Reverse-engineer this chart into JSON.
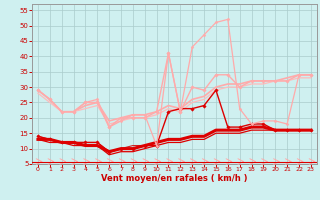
{
  "bg_color": "#cff0f0",
  "grid_color": "#aacccc",
  "xlabel": "Vent moyen/en rafales ( km/h )",
  "xlabel_color": "#cc0000",
  "xlabel_fontsize": 6,
  "xtick_color": "#cc0000",
  "ytick_color": "#cc0000",
  "xlim": [
    -0.5,
    23.5
  ],
  "ylim": [
    5,
    57
  ],
  "yticks": [
    5,
    10,
    15,
    20,
    25,
    30,
    35,
    40,
    45,
    50,
    55
  ],
  "xticks": [
    0,
    1,
    2,
    3,
    4,
    5,
    6,
    7,
    8,
    9,
    10,
    11,
    12,
    13,
    14,
    15,
    16,
    17,
    18,
    19,
    20,
    21,
    22,
    23
  ],
  "lines": [
    {
      "x": [
        0,
        1,
        2,
        3,
        4,
        5,
        6,
        7,
        8,
        9,
        10,
        11,
        12,
        13,
        14,
        15,
        16,
        17,
        18,
        19,
        20,
        21,
        22,
        23
      ],
      "y": [
        14,
        13,
        12,
        12,
        12,
        12,
        9,
        10,
        10,
        11,
        11,
        22,
        23,
        23,
        24,
        29,
        17,
        17,
        18,
        18,
        16,
        16,
        16,
        16
      ],
      "color": "#dd0000",
      "lw": 1.0,
      "marker": "D",
      "ms": 1.8,
      "zorder": 5
    },
    {
      "x": [
        0,
        1,
        2,
        3,
        4,
        5,
        6,
        7,
        8,
        9,
        10,
        11,
        12,
        13,
        14,
        15,
        16,
        17,
        18,
        19,
        20,
        21,
        22,
        23
      ],
      "y": [
        13,
        13,
        12,
        12,
        11,
        11,
        9,
        10,
        10,
        11,
        12,
        13,
        13,
        14,
        14,
        16,
        16,
        16,
        17,
        17,
        16,
        16,
        16,
        16
      ],
      "color": "#dd0000",
      "lw": 2.2,
      "marker": null,
      "ms": 0,
      "zorder": 4
    },
    {
      "x": [
        0,
        1,
        2,
        3,
        4,
        5,
        6,
        7,
        8,
        9,
        10,
        11,
        12,
        13,
        14,
        15,
        16,
        17,
        18,
        19,
        20,
        21,
        22,
        23
      ],
      "y": [
        13,
        12,
        12,
        11,
        11,
        11,
        8,
        9,
        9,
        10,
        11,
        12,
        12,
        13,
        13,
        15,
        15,
        15,
        16,
        16,
        16,
        16,
        16,
        16
      ],
      "color": "#dd0000",
      "lw": 0.9,
      "marker": null,
      "ms": 0,
      "zorder": 3
    },
    {
      "x": [
        0,
        1,
        2,
        3,
        4,
        5,
        6,
        7,
        8,
        9,
        10,
        11,
        12,
        13,
        14,
        15,
        16,
        17,
        18,
        19,
        20,
        21,
        22,
        23
      ],
      "y": [
        14,
        13,
        12,
        12,
        12,
        12,
        9,
        10,
        11,
        11,
        12,
        13,
        13,
        14,
        14,
        16,
        16,
        16,
        17,
        17,
        16,
        16,
        16,
        16
      ],
      "color": "#cc2222",
      "lw": 0.8,
      "marker": null,
      "ms": 0,
      "zorder": 3
    },
    {
      "x": [
        0,
        1,
        2,
        3,
        4,
        5,
        6,
        7,
        8,
        9,
        10,
        11,
        12,
        13,
        14,
        15,
        16,
        17,
        18,
        19,
        20,
        21,
        22,
        23
      ],
      "y": [
        29,
        26,
        22,
        22,
        25,
        25,
        17,
        20,
        20,
        20,
        22,
        41,
        22,
        30,
        29,
        34,
        34,
        30,
        32,
        32,
        32,
        32,
        34,
        34
      ],
      "color": "#ffaaaa",
      "lw": 1.0,
      "marker": "D",
      "ms": 1.8,
      "zorder": 5
    },
    {
      "x": [
        0,
        1,
        2,
        3,
        4,
        5,
        6,
        7,
        8,
        9,
        10,
        11,
        12,
        13,
        14,
        15,
        16,
        17,
        18,
        19,
        20,
        21,
        22,
        23
      ],
      "y": [
        29,
        26,
        22,
        22,
        24,
        25,
        19,
        20,
        21,
        21,
        22,
        24,
        23,
        26,
        27,
        30,
        31,
        31,
        32,
        32,
        32,
        33,
        34,
        34
      ],
      "color": "#ffaaaa",
      "lw": 1.2,
      "marker": null,
      "ms": 0,
      "zorder": 3
    },
    {
      "x": [
        0,
        1,
        2,
        3,
        4,
        5,
        6,
        7,
        8,
        9,
        10,
        11,
        12,
        13,
        14,
        15,
        16,
        17,
        18,
        19,
        20,
        21,
        22,
        23
      ],
      "y": [
        28,
        25,
        22,
        22,
        23,
        24,
        18,
        19,
        20,
        20,
        21,
        23,
        22,
        25,
        26,
        29,
        30,
        30,
        31,
        31,
        32,
        32,
        33,
        33
      ],
      "color": "#ffbbbb",
      "lw": 0.9,
      "marker": null,
      "ms": 0,
      "zorder": 3
    },
    {
      "x": [
        0,
        1,
        2,
        3,
        4,
        5,
        6,
        7,
        8,
        9,
        10,
        11,
        12,
        13,
        14,
        15,
        16,
        17,
        18,
        19,
        20,
        21,
        22,
        23
      ],
      "y": [
        29,
        26,
        22,
        22,
        25,
        26,
        17,
        19,
        21,
        21,
        11,
        41,
        22,
        43,
        47,
        51,
        52,
        23,
        18,
        19,
        19,
        18,
        34,
        34
      ],
      "color": "#ffaaaa",
      "lw": 0.9,
      "marker": "D",
      "ms": 1.5,
      "zorder": 5
    }
  ],
  "arrows": {
    "y_data": 5.8,
    "color": "#ffaaaa",
    "lw": 0.7
  }
}
